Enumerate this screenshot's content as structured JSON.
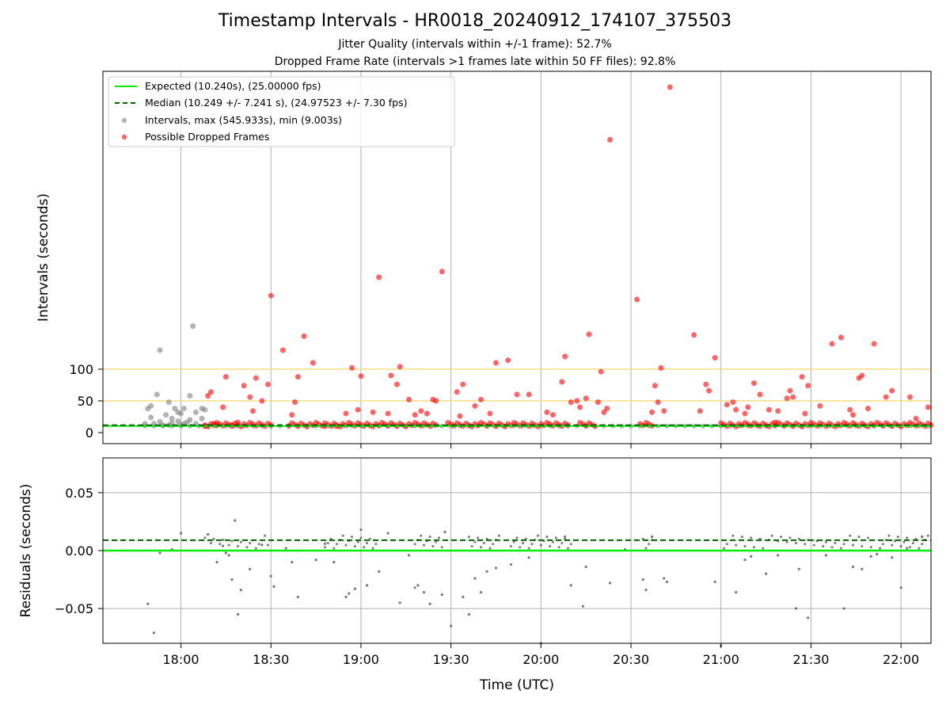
{
  "figure": {
    "title": "Timestamp Intervals - HR0018_20240912_174107_375503",
    "subtitle_jitter": "Jitter Quality (intervals within +/-1 frame): 52.7%",
    "subtitle_dropped": "Dropped Frame Rate (intervals >1 frames late within 50 FF files): 92.8%"
  },
  "colors": {
    "expected": "#00ee00",
    "median": "#006400",
    "intervals": "#808080",
    "dropped": "#ff0000",
    "threshold": "#f5d76e",
    "grid": "#b0b0b0"
  },
  "chart_data": [
    {
      "type": "scatter",
      "panel": "intervals",
      "ylabel": "Intervals (seconds)",
      "y_tick_labels": [
        "0",
        "50",
        "100"
      ],
      "y_ticks": [
        0,
        50,
        100
      ],
      "threshold_lines": [
        10.24,
        50,
        100
      ],
      "x_range_minutes_utc": [
        "17:34",
        "22:10"
      ],
      "x_ticks": [
        "18:00",
        "18:30",
        "19:00",
        "19:30",
        "20:00",
        "20:30",
        "21:00",
        "21:30",
        "22:00"
      ],
      "grid": true,
      "legend_position": "top-left",
      "legend": {
        "expected": "Expected (10.240s), (25.00000 fps)",
        "median": "Median (10.249 +/- 7.241 s), (24.97523 +/- 7.30 fps)",
        "intervals": "Intervals, max (545.933s), min (9.003s)",
        "dropped": "Possible Dropped Frames"
      },
      "expected_value": 10.24,
      "median_value": 10.249,
      "series": [
        {
          "name": "Intervals, max (545.933s), min (9.003s)",
          "points": [
            [
              "17:49",
              38
            ],
            [
              "17:50",
              42
            ],
            [
              "17:50",
              24
            ],
            [
              "17:51",
              14
            ],
            [
              "17:52",
              60
            ],
            [
              "17:53",
              130
            ],
            [
              "17:54",
              12
            ],
            [
              "17:55",
              28
            ],
            [
              "17:56",
              48
            ],
            [
              "17:57",
              22
            ],
            [
              "17:57",
              15
            ],
            [
              "17:58",
              38
            ],
            [
              "17:59",
              18
            ],
            [
              "17:59",
              32
            ],
            [
              "18:00",
              30
            ],
            [
              "18:00",
              12
            ],
            [
              "18:01",
              38
            ],
            [
              "18:02",
              16
            ],
            [
              "18:03",
              58
            ],
            [
              "18:03",
              20
            ],
            [
              "18:04",
              168
            ],
            [
              "18:05",
              14
            ],
            [
              "18:07",
              22
            ],
            [
              "18:07",
              38
            ],
            [
              "18:08",
              36
            ],
            [
              "18:05",
              32
            ],
            [
              "17:48",
              14
            ],
            [
              "17:53",
              17
            ],
            [
              "17:56",
              12
            ],
            [
              "18:01",
              14
            ]
          ]
        },
        {
          "name": "Possible Dropped Frames",
          "points": [
            [
              "18:08",
              10
            ],
            [
              "18:09",
              58
            ],
            [
              "18:10",
              64
            ],
            [
              "18:11",
              14
            ],
            [
              "18:12",
              12
            ],
            [
              "18:14",
              40
            ],
            [
              "18:15",
              88
            ],
            [
              "18:17",
              12
            ],
            [
              "18:19",
              16
            ],
            [
              "18:21",
              74
            ],
            [
              "18:23",
              56
            ],
            [
              "18:24",
              34
            ],
            [
              "18:25",
              86
            ],
            [
              "18:27",
              50
            ],
            [
              "18:29",
              76
            ],
            [
              "18:30",
              216
            ],
            [
              "18:34",
              130
            ],
            [
              "18:37",
              28
            ],
            [
              "18:38",
              48
            ],
            [
              "18:39",
              88
            ],
            [
              "18:41",
              152
            ],
            [
              "18:44",
              110
            ],
            [
              "18:48",
              10
            ],
            [
              "18:52",
              10
            ],
            [
              "18:55",
              30
            ],
            [
              "18:57",
              102
            ],
            [
              "18:59",
              36
            ],
            [
              "19:00",
              89
            ],
            [
              "19:04",
              32
            ],
            [
              "19:06",
              245
            ],
            [
              "19:09",
              30
            ],
            [
              "19:10",
              90
            ],
            [
              "19:12",
              76
            ],
            [
              "19:13",
              104
            ],
            [
              "19:16",
              52
            ],
            [
              "19:18",
              28
            ],
            [
              "19:20",
              34
            ],
            [
              "19:22",
              30
            ],
            [
              "19:24",
              52
            ],
            [
              "19:25",
              50
            ],
            [
              "19:27",
              254
            ],
            [
              "19:32",
              64
            ],
            [
              "19:33",
              26
            ],
            [
              "19:34",
              76
            ],
            [
              "19:38",
              42
            ],
            [
              "19:40",
              52
            ],
            [
              "19:43",
              30
            ],
            [
              "19:45",
              110
            ],
            [
              "19:49",
              114
            ],
            [
              "19:52",
              60
            ],
            [
              "19:56",
              60
            ],
            [
              "20:02",
              32
            ],
            [
              "20:04",
              28
            ],
            [
              "20:07",
              80
            ],
            [
              "20:08",
              120
            ],
            [
              "20:10",
              48
            ],
            [
              "20:12",
              50
            ],
            [
              "20:13",
              40
            ],
            [
              "20:15",
              54
            ],
            [
              "20:16",
              155
            ],
            [
              "20:19",
              48
            ],
            [
              "20:20",
              96
            ],
            [
              "20:21",
              32
            ],
            [
              "20:22",
              38
            ],
            [
              "20:23",
              462
            ],
            [
              "20:32",
              210
            ],
            [
              "20:37",
              32
            ],
            [
              "20:38",
              74
            ],
            [
              "20:39",
              48
            ],
            [
              "20:40",
              102
            ],
            [
              "20:41",
              34
            ],
            [
              "20:43",
              545
            ],
            [
              "20:51",
              154
            ],
            [
              "20:53",
              34
            ],
            [
              "20:55",
              76
            ],
            [
              "20:56",
              66
            ],
            [
              "20:58",
              118
            ],
            [
              "21:02",
              44
            ],
            [
              "21:04",
              48
            ],
            [
              "21:05",
              36
            ],
            [
              "21:08",
              30
            ],
            [
              "21:09",
              40
            ],
            [
              "21:11",
              78
            ],
            [
              "21:13",
              60
            ],
            [
              "21:16",
              36
            ],
            [
              "21:18",
              16
            ],
            [
              "21:19",
              34
            ],
            [
              "21:22",
              54
            ],
            [
              "21:23",
              66
            ],
            [
              "21:24",
              56
            ],
            [
              "21:27",
              88
            ],
            [
              "21:28",
              30
            ],
            [
              "21:29",
              74
            ],
            [
              "21:33",
              42
            ],
            [
              "21:37",
              140
            ],
            [
              "21:40",
              150
            ],
            [
              "21:43",
              36
            ],
            [
              "21:44",
              28
            ],
            [
              "21:46",
              86
            ],
            [
              "21:47",
              90
            ],
            [
              "21:49",
              38
            ],
            [
              "21:51",
              140
            ],
            [
              "21:55",
              56
            ],
            [
              "21:57",
              66
            ],
            [
              "22:03",
              56
            ],
            [
              "22:05",
              22
            ],
            [
              "22:09",
              40
            ]
          ]
        }
      ]
    },
    {
      "type": "scatter",
      "panel": "residuals",
      "xlabel": "Time (UTC)",
      "ylabel": "Residuals (seconds)",
      "y_tick_labels": [
        "−0.05",
        "0.00",
        "0.05"
      ],
      "y_ticks": [
        -0.05,
        0.0,
        0.05
      ],
      "y_range": [
        -0.08,
        0.08
      ],
      "x_ticks": [
        "18:00",
        "18:30",
        "19:00",
        "19:30",
        "20:00",
        "20:30",
        "21:00",
        "21:30",
        "22:00"
      ],
      "grid": true,
      "expected_value": 0.0,
      "median_value": 0.009,
      "series": [
        {
          "name": "Residuals",
          "points": [
            [
              "17:49",
              -0.046
            ],
            [
              "17:51",
              -0.071
            ],
            [
              "17:53",
              -0.002
            ],
            [
              "17:57",
              0.001
            ],
            [
              "18:00",
              0.015
            ],
            [
              "18:09",
              0.014
            ],
            [
              "18:12",
              -0.01
            ],
            [
              "18:14",
              0.004
            ],
            [
              "18:15",
              -0.002
            ],
            [
              "18:16",
              -0.004
            ],
            [
              "18:17",
              -0.025
            ],
            [
              "18:18",
              0.026
            ],
            [
              "18:19",
              -0.055
            ],
            [
              "18:20",
              -0.034
            ],
            [
              "18:23",
              -0.016
            ],
            [
              "18:27",
              0.005
            ],
            [
              "18:30",
              -0.022
            ],
            [
              "18:31",
              -0.031
            ],
            [
              "18:35",
              0.002
            ],
            [
              "18:37",
              -0.01
            ],
            [
              "18:39",
              -0.04
            ],
            [
              "18:45",
              -0.008
            ],
            [
              "18:48",
              0.006
            ],
            [
              "18:51",
              -0.01
            ],
            [
              "18:55",
              -0.04
            ],
            [
              "18:56",
              -0.037
            ],
            [
              "18:58",
              -0.033
            ],
            [
              "19:00",
              0.018
            ],
            [
              "19:02",
              -0.03
            ],
            [
              "19:06",
              -0.018
            ],
            [
              "19:09",
              0.015
            ],
            [
              "19:13",
              -0.045
            ],
            [
              "19:16",
              -0.004
            ],
            [
              "19:18",
              -0.032
            ],
            [
              "19:19",
              -0.03
            ],
            [
              "19:21",
              -0.036
            ],
            [
              "19:23",
              -0.046
            ],
            [
              "19:27",
              -0.038
            ],
            [
              "19:28",
              0.016
            ],
            [
              "19:30",
              -0.065
            ],
            [
              "19:34",
              -0.04
            ],
            [
              "19:36",
              -0.055
            ],
            [
              "19:38",
              -0.024
            ],
            [
              "19:40",
              -0.036
            ],
            [
              "19:42",
              -0.018
            ],
            [
              "19:45",
              -0.015
            ],
            [
              "19:50",
              -0.012
            ],
            [
              "19:56",
              -0.006
            ],
            [
              "20:00",
              -0.08
            ],
            [
              "20:08",
              0.012
            ],
            [
              "20:10",
              -0.03
            ],
            [
              "20:14",
              -0.048
            ],
            [
              "20:15",
              -0.014
            ],
            [
              "20:23",
              -0.028
            ],
            [
              "20:28",
              0.001
            ],
            [
              "20:34",
              -0.025
            ],
            [
              "20:35",
              -0.034
            ],
            [
              "20:37",
              0.012
            ],
            [
              "20:41",
              -0.024
            ],
            [
              "20:42",
              -0.027
            ],
            [
              "20:58",
              -0.027
            ],
            [
              "21:00",
              -0.082
            ],
            [
              "21:05",
              -0.036
            ],
            [
              "21:08",
              -0.008
            ],
            [
              "21:10",
              -0.005
            ],
            [
              "21:15",
              -0.02
            ],
            [
              "21:19",
              -0.004
            ],
            [
              "21:26",
              -0.016
            ],
            [
              "21:25",
              -0.05
            ],
            [
              "21:29",
              -0.058
            ],
            [
              "21:35",
              -0.004
            ],
            [
              "21:41",
              -0.05
            ],
            [
              "21:44",
              -0.014
            ],
            [
              "21:47",
              -0.016
            ],
            [
              "21:50",
              -0.005
            ],
            [
              "21:52",
              -0.003
            ],
            [
              "21:57",
              -0.006
            ],
            [
              "22:00",
              -0.032
            ],
            [
              "22:02",
              0.002
            ],
            [
              "22:07",
              0.012
            ]
          ]
        }
      ]
    }
  ]
}
